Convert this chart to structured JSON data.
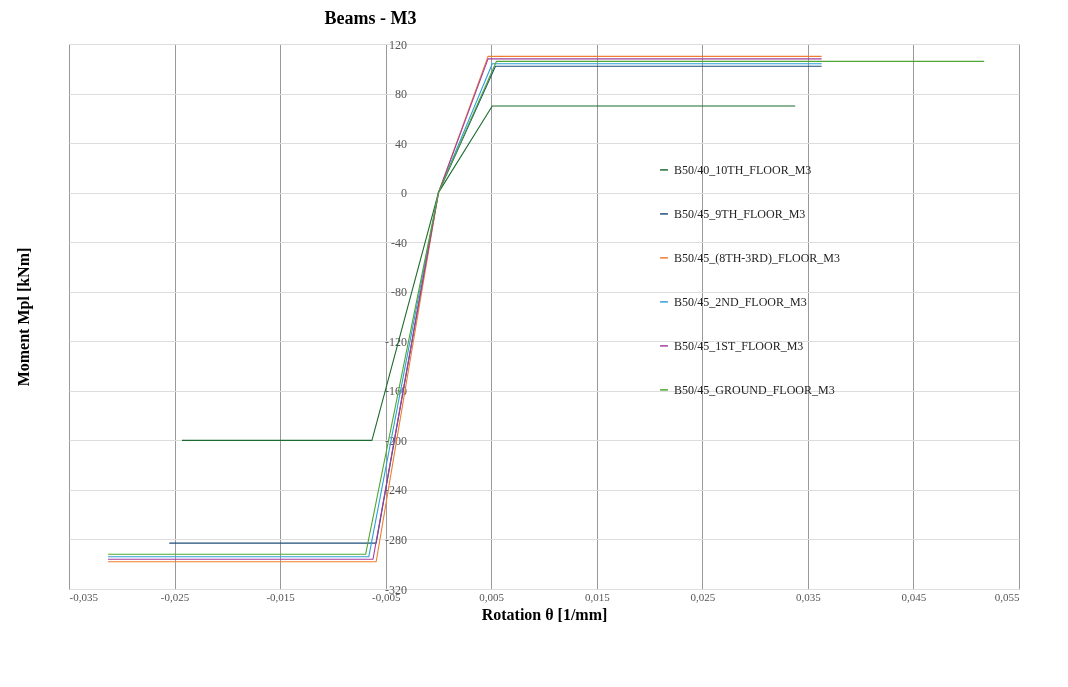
{
  "chart_data": {
    "type": "line",
    "title": "Beams - M3",
    "xlabel": "Rotation θ [1/mm]",
    "ylabel": "Moment Mpl [kNm]",
    "xlim": [
      -0.035,
      0.055
    ],
    "xticks": [
      {
        "value": -0.035,
        "label": "-0,035"
      },
      {
        "value": -0.025,
        "label": "-0,025"
      },
      {
        "value": -0.015,
        "label": "-0,015"
      },
      {
        "value": -0.005,
        "label": "-0,005"
      },
      {
        "value": 0.005,
        "label": "0,005"
      },
      {
        "value": 0.015,
        "label": "0,015"
      },
      {
        "value": 0.025,
        "label": "0,025"
      },
      {
        "value": 0.035,
        "label": "0,035"
      },
      {
        "value": 0.045,
        "label": "0,045"
      },
      {
        "value": 0.055,
        "label": "0,055"
      }
    ],
    "ylim": [
      -320,
      120
    ],
    "yticks": [
      -320,
      -280,
      -240,
      -200,
      -160,
      -120,
      -80,
      -40,
      0,
      40,
      80,
      120
    ],
    "grid": true,
    "legend": "right",
    "marker": "none",
    "line_style": "solid",
    "series": [
      {
        "name": "B50/40_10TH_FLOOR_M3",
        "color": "#1e6b30",
        "x": [
          -0.0243,
          -0.0063,
          0,
          0.0051,
          0.0338
        ],
        "values": [
          -200,
          -200,
          0,
          70,
          70
        ]
      },
      {
        "name": "B50/45_9TH_FLOOR_M3",
        "color": "#1f4e79",
        "x": [
          -0.0255,
          -0.0059,
          0,
          0.0054,
          0.0363
        ],
        "values": [
          -283,
          -283,
          0,
          102,
          102
        ]
      },
      {
        "name": "B50/45_(8TH-3RD)_FLOOR_M3",
        "color": "#ed7d31",
        "x": [
          -0.0313,
          -0.0059,
          0,
          0.0047,
          0.0363
        ],
        "values": [
          -298,
          -298,
          0,
          110,
          110
        ]
      },
      {
        "name": "B50/45_2ND_FLOOR_M3",
        "color": "#2e9fd8",
        "x": [
          -0.0313,
          -0.0066,
          0,
          0.0051,
          0.0363
        ],
        "values": [
          -294,
          -294,
          0,
          104,
          104
        ]
      },
      {
        "name": "B50/45_1ST_FLOOR_M3",
        "color": "#a33ea1",
        "x": [
          -0.0313,
          -0.0062,
          0,
          0.0047,
          0.0363
        ],
        "values": [
          -296,
          -296,
          0,
          108,
          108
        ]
      },
      {
        "name": "B50/45_GROUND_FLOOR_M3",
        "color": "#4ea72e",
        "x": [
          -0.0313,
          -0.0069,
          0,
          0.0055,
          0.0517
        ],
        "values": [
          -292,
          -292,
          0,
          106,
          106
        ]
      }
    ]
  }
}
